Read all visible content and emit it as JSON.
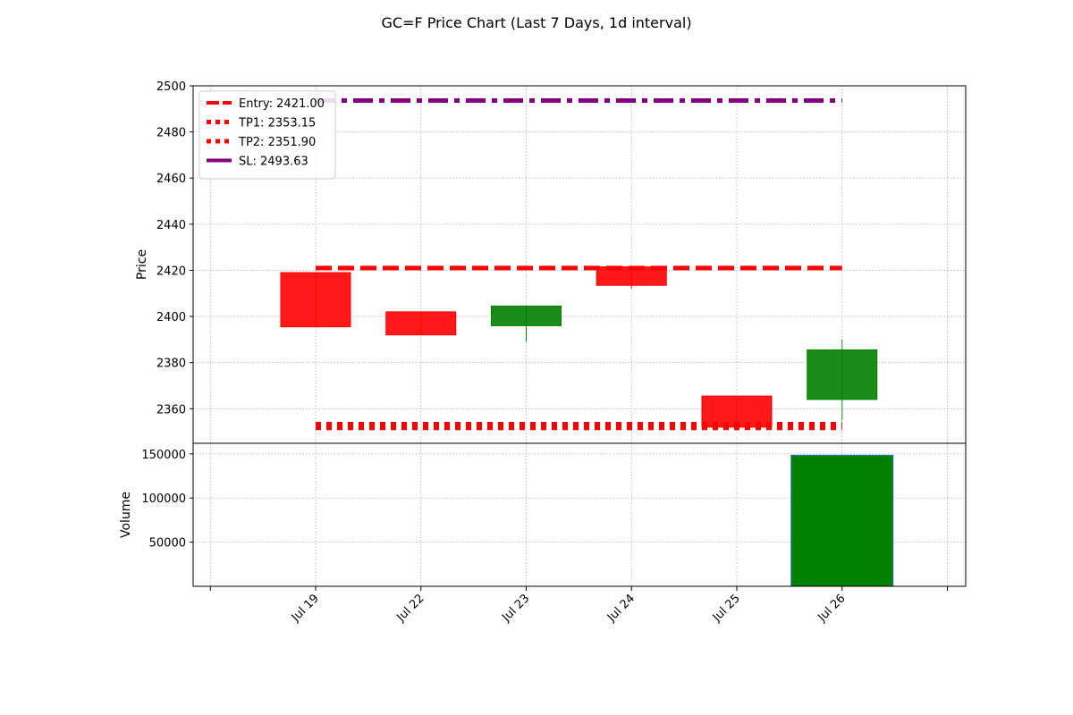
{
  "chart_data": {
    "type": "candlestick",
    "title": "GC=F Price Chart (Last 7 Days, 1d interval)",
    "grid": true,
    "price_panel": {
      "ylabel": "Price",
      "ylim": [
        2345,
        2500
      ],
      "yticks": [
        2360,
        2380,
        2400,
        2420,
        2440,
        2460,
        2480,
        2500
      ],
      "categories": [
        "Jul 19",
        "Jul 22",
        "Jul 23",
        "Jul 24",
        "Jul 25",
        "Jul 26"
      ],
      "candles": [
        {
          "date": "Jul 19",
          "open": 2419,
          "close": 2395.5,
          "high": 2419,
          "low": 2395.5
        },
        {
          "date": "Jul 22",
          "open": 2402,
          "close": 2392,
          "high": 2402,
          "low": 2392
        },
        {
          "date": "Jul 23",
          "open": 2396,
          "close": 2404.5,
          "high": 2404.5,
          "low": 2389
        },
        {
          "date": "Jul 24",
          "open": 2421.5,
          "close": 2413.5,
          "high": 2421.5,
          "low": 2412
        },
        {
          "date": "Jul 25",
          "open": 2365.5,
          "close": 2352,
          "high": 2365.5,
          "low": 2352
        },
        {
          "date": "Jul 26",
          "open": 2364,
          "close": 2385.5,
          "high": 2390,
          "low": 2355
        }
      ],
      "up_color": "#008000",
      "down_color": "#ff0000",
      "levels": [
        {
          "label": "Entry: 2421.00",
          "value": 2421.0,
          "color": "#ff0000",
          "style": "dashed"
        },
        {
          "label": "TP1: 2353.15",
          "value": 2353.15,
          "color": "#ff0000",
          "style": "dotted"
        },
        {
          "label": "TP2: 2351.90",
          "value": 2351.9,
          "color": "#ff0000",
          "style": "dotted"
        },
        {
          "label": "SL: 2493.63",
          "value": 2493.63,
          "color": "#800080",
          "style": "dashdot"
        }
      ],
      "legend_position": "top-left"
    },
    "volume_panel": {
      "ylabel": "Volume",
      "ylim": [
        0,
        162000
      ],
      "yticks": [
        50000,
        100000,
        150000
      ],
      "bars": [
        {
          "date": "Jul 19",
          "value": 0
        },
        {
          "date": "Jul 22",
          "value": 0
        },
        {
          "date": "Jul 23",
          "value": 0
        },
        {
          "date": "Jul 24",
          "value": 0
        },
        {
          "date": "Jul 25",
          "value": 0
        },
        {
          "date": "Jul 26",
          "value": 148500
        }
      ],
      "bar_color": "#008000"
    }
  }
}
